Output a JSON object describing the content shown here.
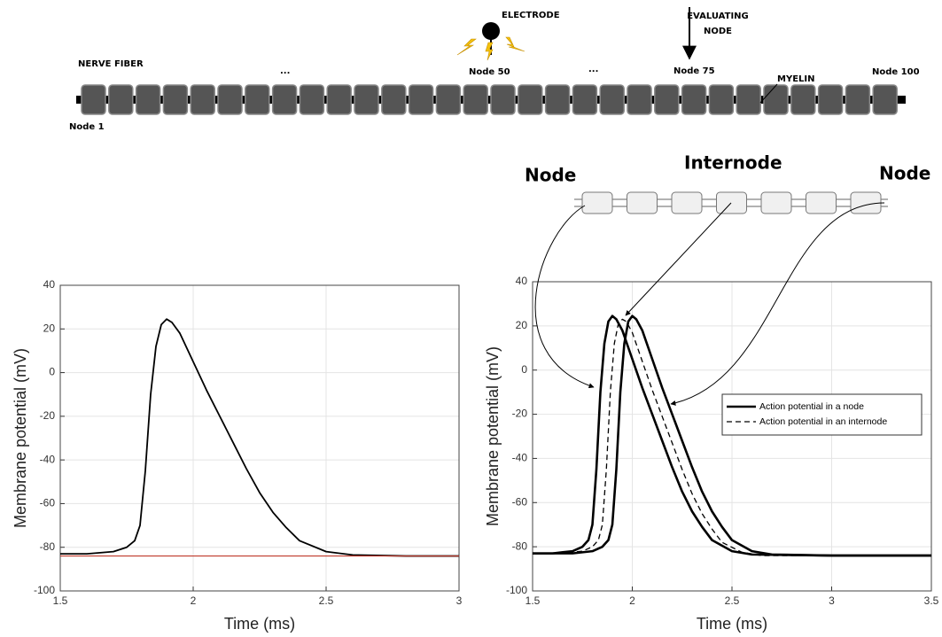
{
  "diagram": {
    "nerve_fiber": "NERVE FIBER",
    "electrode": "ELECTRODE",
    "evaluating_node": "EVALUATING NODE",
    "ellipsis_left": "...",
    "ellipsis_right": "...",
    "node_1": "Node 1",
    "node_50": "Node 50",
    "node_75": "Node 75",
    "node_100": "Node 100",
    "myelin": "MYELIN",
    "inset": {
      "node_left": "Node",
      "internode": "Internode",
      "node_right": "Node"
    }
  },
  "chart_data": [
    {
      "type": "line",
      "xlabel": "Time (ms)",
      "ylabel": "Membrane potential (mV)",
      "xlim": [
        1.5,
        3
      ],
      "ylim": [
        -100,
        40
      ],
      "xticks": [
        1.5,
        2,
        2.5,
        3
      ],
      "yticks": [
        -100,
        -80,
        -60,
        -40,
        -20,
        0,
        20,
        40
      ],
      "grid": true,
      "series": [
        {
          "color": "#000000",
          "width": 1.8,
          "dash": false,
          "x": [
            1.5,
            1.6,
            1.7,
            1.75,
            1.78,
            1.8,
            1.82,
            1.84,
            1.86,
            1.88,
            1.9,
            1.92,
            1.95,
            2.0,
            2.05,
            2.1,
            2.15,
            2.2,
            2.25,
            2.3,
            2.35,
            2.4,
            2.5,
            2.6,
            2.8,
            3.0
          ],
          "values": [
            -83,
            -83,
            -82,
            -80,
            -77,
            -70,
            -45,
            -10,
            12,
            22,
            24.5,
            23,
            18,
            5,
            -8,
            -20,
            -32,
            -44,
            -55,
            -64,
            -71,
            -77,
            -82,
            -83.5,
            -84,
            -84
          ]
        },
        {
          "color": "#c0392b",
          "width": 1.2,
          "dash": false,
          "x": [
            1.5,
            3
          ],
          "values": [
            -84,
            -84
          ]
        }
      ]
    },
    {
      "type": "line",
      "xlabel": "Time (ms)",
      "ylabel": "Membrane potential (mV)",
      "xlim": [
        1.5,
        3.5
      ],
      "ylim": [
        -100,
        40
      ],
      "xticks": [
        1.5,
        2,
        2.5,
        3,
        3.5
      ],
      "yticks": [
        -100,
        -80,
        -60,
        -40,
        -20,
        0,
        20,
        40
      ],
      "grid": true,
      "legend": "upper right",
      "series": [
        {
          "name": "Action potential in a node",
          "color": "#000000",
          "width": 2.6,
          "dash": false,
          "x": [
            1.5,
            1.6,
            1.7,
            1.75,
            1.78,
            1.8,
            1.82,
            1.84,
            1.86,
            1.88,
            1.9,
            1.92,
            1.95,
            2.0,
            2.05,
            2.1,
            2.15,
            2.2,
            2.25,
            2.3,
            2.35,
            2.4,
            2.5,
            2.6,
            3.0,
            3.5
          ],
          "values": [
            -83,
            -83,
            -82,
            -80,
            -77,
            -70,
            -45,
            -10,
            12,
            22,
            24.5,
            23,
            18,
            5,
            -8,
            -20,
            -32,
            -44,
            -55,
            -64,
            -71,
            -77,
            -82,
            -83.5,
            -84,
            -84
          ]
        },
        {
          "name": "Action potential in an internode",
          "color": "#000000",
          "width": 1.3,
          "dash": true,
          "x": [
            1.5,
            1.65,
            1.75,
            1.8,
            1.83,
            1.85,
            1.87,
            1.89,
            1.91,
            1.93,
            1.95,
            1.97,
            2.0,
            2.05,
            2.1,
            2.15,
            2.2,
            2.25,
            2.3,
            2.35,
            2.4,
            2.45,
            2.55,
            2.65,
            3.0,
            3.5
          ],
          "values": [
            -83,
            -83,
            -82,
            -80,
            -77,
            -70,
            -45,
            -10,
            12,
            21,
            23,
            22,
            17,
            4,
            -9,
            -21,
            -33,
            -45,
            -56,
            -65,
            -72,
            -78,
            -82.5,
            -84,
            -84,
            -84
          ]
        },
        {
          "color": "#000000",
          "width": 2.6,
          "dash": false,
          "x": [
            1.5,
            1.7,
            1.8,
            1.85,
            1.88,
            1.9,
            1.92,
            1.94,
            1.96,
            1.98,
            2.0,
            2.02,
            2.05,
            2.1,
            2.15,
            2.2,
            2.25,
            2.3,
            2.35,
            2.4,
            2.45,
            2.5,
            2.6,
            2.7,
            3.0,
            3.5
          ],
          "values": [
            -83,
            -83,
            -82,
            -80,
            -77,
            -70,
            -45,
            -10,
            12,
            22,
            24.5,
            23,
            18,
            5,
            -8,
            -20,
            -32,
            -44,
            -55,
            -64,
            -71,
            -77,
            -82,
            -83.5,
            -84,
            -84
          ]
        }
      ]
    }
  ]
}
